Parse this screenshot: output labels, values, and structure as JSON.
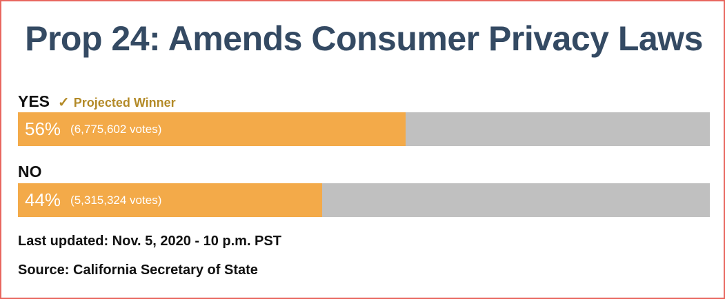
{
  "chart_data": {
    "type": "bar",
    "title": "Prop 24: Amends Consumer Privacy Laws",
    "categories": [
      "YES",
      "NO"
    ],
    "values": [
      56,
      44
    ],
    "value_labels": [
      "56%",
      "44%"
    ],
    "vote_labels": [
      "(6,775,602 votes)",
      "(5,315,324 votes)"
    ],
    "votes": [
      6775602,
      5315324
    ],
    "winner_note": "Projected Winner",
    "winner_index": 0,
    "xlim": [
      0,
      100
    ],
    "colors": {
      "fill": "#f3aa49",
      "track": "#c0c0c0",
      "title": "#344a63",
      "winner": "#b38a27",
      "border": "#e8675f"
    }
  },
  "footer": {
    "last_updated": "Last updated: Nov. 5, 2020 - 10 p.m. PST",
    "source": "Source: California Secretary of State"
  },
  "icons": {
    "winner_icon": "check-icon"
  }
}
